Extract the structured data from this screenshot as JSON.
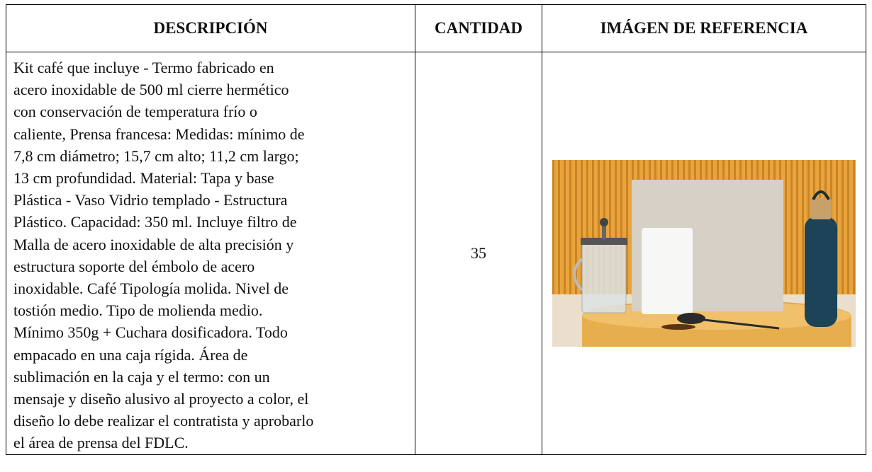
{
  "table": {
    "headers": [
      "DESCRIPCIÓN",
      "CANTIDAD",
      "IMÁGEN DE REFERENCIA"
    ],
    "rows": [
      {
        "description": [
          "Kit café que incluye - Termo fabricado en",
          "acero inoxidable de 500 ml cierre hermético",
          "con conservación de temperatura frío o",
          "caliente, Prensa francesa: Medidas: mínimo de",
          "7,8 cm diámetro; 15,7 cm alto; 11,2 cm largo;",
          "13 cm profundidad. Material: Tapa y base",
          "Plástica - Vaso Vidrio templado - Estructura",
          "Plástico. Capacidad: 350 ml. Incluye filtro de",
          "Malla de acero inoxidable de alta precisión y",
          "estructura soporte del émbolo de acero",
          "inoxidable. Café Tipología molida. Nivel de",
          "tostión medio. Tipo de molienda medio.",
          "Mínimo 350g + Cuchara dosificadora. Todo",
          "empacado en una caja rígida. Área de",
          "sublimación en la caja y el termo: con un",
          "mensaje y diseño alusivo al proyecto a color, el",
          "diseño lo debe realizar el contratista y aprobarlo",
          "el área de prensa del FDLC."
        ],
        "quantity": "35"
      }
    ]
  }
}
